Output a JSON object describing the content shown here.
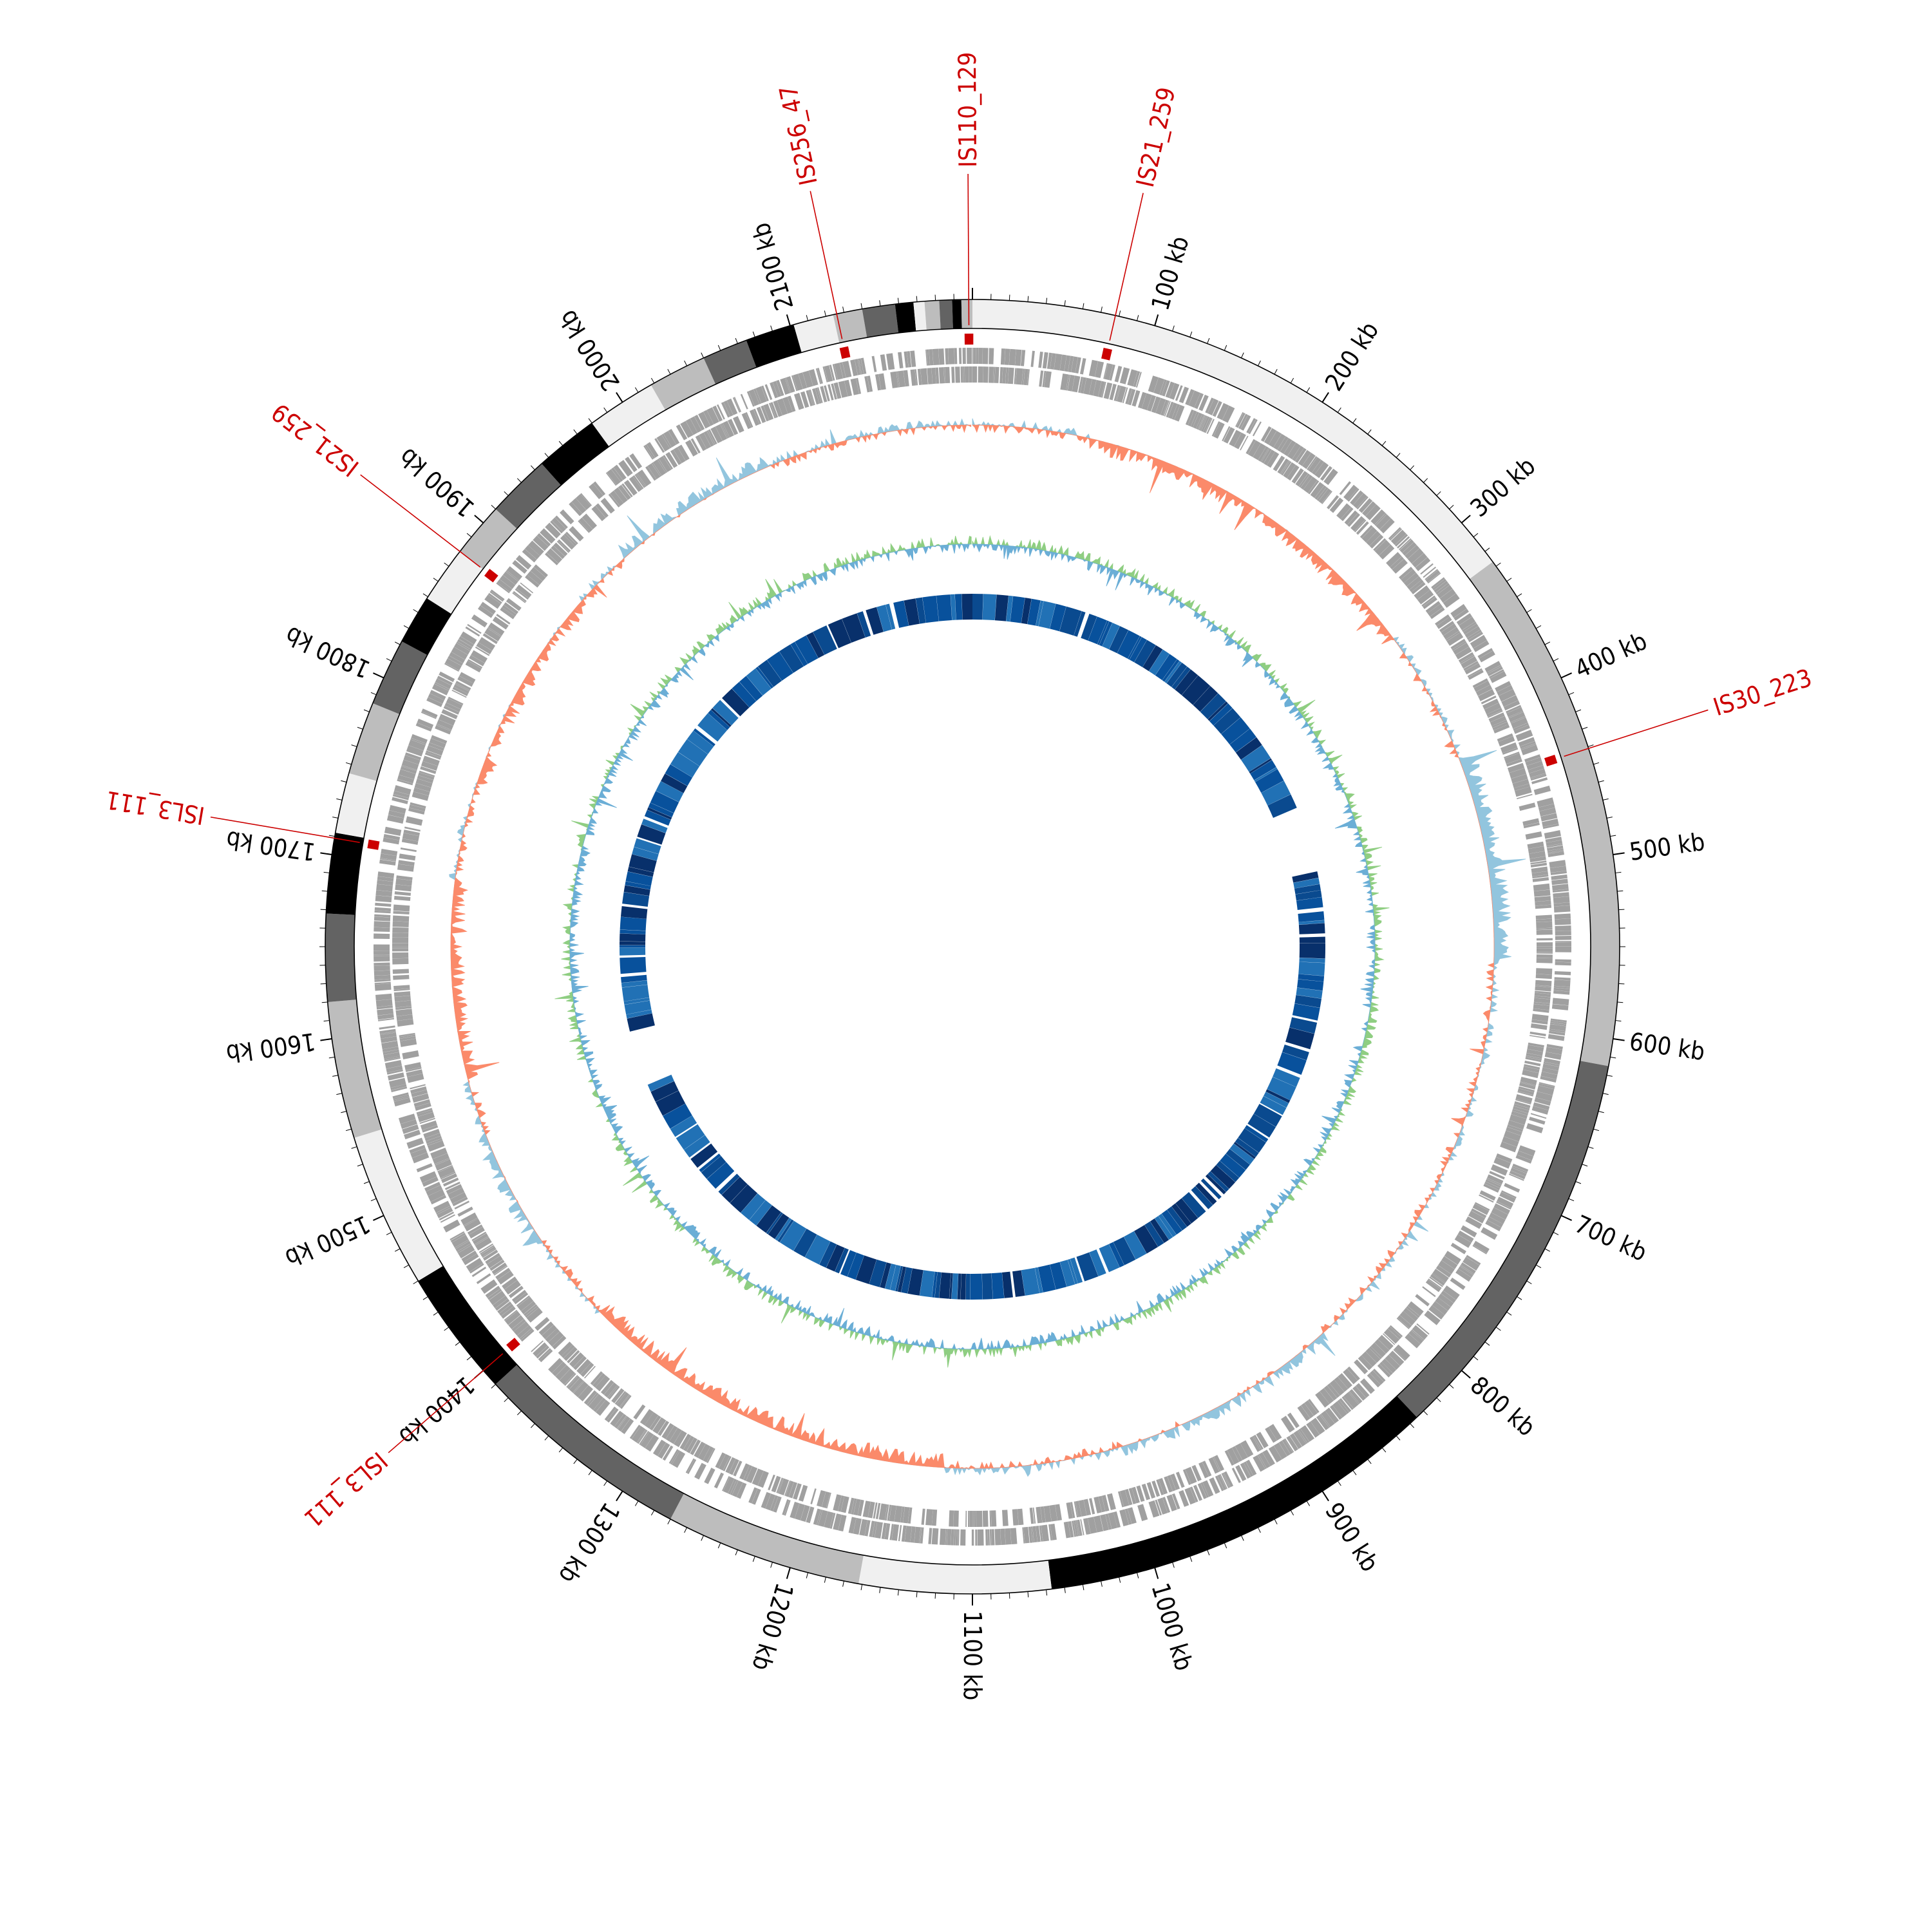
{
  "genome_size_kb": 2200,
  "colors": {
    "ideogram_bands": [
      "#f0f0f0",
      "#bdbdbd",
      "#636363",
      "#000000"
    ],
    "ideogram_outline": "#000000",
    "gene_blocks": "#a0a0a0",
    "gc_skew_positive": "#92c5de",
    "gc_skew_negative": "#fb8a6a",
    "gc_content": "#8fce82",
    "gc_content_alt": "#6baed6",
    "identity_track": [
      "#08306b",
      "#08519c",
      "#2171b5",
      "#0a4a8f"
    ],
    "is_element": "#cc0000"
  },
  "ideogram": {
    "bands": [
      {
        "start": 0,
        "end": 327,
        "shade": 0
      },
      {
        "start": 327,
        "end": 615,
        "shade": 1
      },
      {
        "start": 615,
        "end": 835,
        "shade": 2
      },
      {
        "start": 835,
        "end": 1057,
        "shade": 3
      },
      {
        "start": 1057,
        "end": 1162,
        "shade": 0
      },
      {
        "start": 1162,
        "end": 1270,
        "shade": 1
      },
      {
        "start": 1270,
        "end": 1390,
        "shade": 2
      },
      {
        "start": 1390,
        "end": 1460,
        "shade": 3
      },
      {
        "start": 1460,
        "end": 1545,
        "shade": 0
      },
      {
        "start": 1545,
        "end": 1620,
        "shade": 1
      },
      {
        "start": 1620,
        "end": 1668,
        "shade": 2
      },
      {
        "start": 1668,
        "end": 1712,
        "shade": 3
      },
      {
        "start": 1712,
        "end": 1745,
        "shade": 0
      },
      {
        "start": 1745,
        "end": 1785,
        "shade": 1
      },
      {
        "start": 1785,
        "end": 1822,
        "shade": 2
      },
      {
        "start": 1822,
        "end": 1849,
        "shade": 3
      },
      {
        "start": 1849,
        "end": 1880,
        "shade": 0
      },
      {
        "start": 1880,
        "end": 1910,
        "shade": 1
      },
      {
        "start": 1910,
        "end": 1945,
        "shade": 2
      },
      {
        "start": 1945,
        "end": 1980,
        "shade": 3
      },
      {
        "start": 1980,
        "end": 2018,
        "shade": 0
      },
      {
        "start": 2018,
        "end": 2050,
        "shade": 1
      },
      {
        "start": 2050,
        "end": 2075,
        "shade": 2
      },
      {
        "start": 2075,
        "end": 2102,
        "shade": 3
      },
      {
        "start": 2102,
        "end": 2124,
        "shade": 0
      },
      {
        "start": 2124,
        "end": 2140,
        "shade": 1
      },
      {
        "start": 2140,
        "end": 2158,
        "shade": 2
      },
      {
        "start": 2158,
        "end": 2168,
        "shade": 3
      },
      {
        "start": 2168,
        "end": 2174,
        "shade": 0
      },
      {
        "start": 2174,
        "end": 2182,
        "shade": 1
      },
      {
        "start": 2182,
        "end": 2189,
        "shade": 2
      },
      {
        "start": 2189,
        "end": 2194,
        "shade": 3
      },
      {
        "start": 2194,
        "end": 2200,
        "shade": 1
      }
    ]
  },
  "tick_labels": [
    {
      "kb": 100,
      "label": "100 kb"
    },
    {
      "kb": 200,
      "label": "200 kb"
    },
    {
      "kb": 300,
      "label": "300 kb"
    },
    {
      "kb": 400,
      "label": "400 kb"
    },
    {
      "kb": 500,
      "label": "500 kb"
    },
    {
      "kb": 600,
      "label": "600 kb"
    },
    {
      "kb": 700,
      "label": "700 kb"
    },
    {
      "kb": 800,
      "label": "800 kb"
    },
    {
      "kb": 900,
      "label": "900 kb"
    },
    {
      "kb": 1000,
      "label": "1000 kb"
    },
    {
      "kb": 1100,
      "label": "1100 kb"
    },
    {
      "kb": 1200,
      "label": "1200 kb"
    },
    {
      "kb": 1300,
      "label": "1300 kb"
    },
    {
      "kb": 1400,
      "label": "1400 kb"
    },
    {
      "kb": 1500,
      "label": "1500 kb"
    },
    {
      "kb": 1600,
      "label": "1600 kb"
    },
    {
      "kb": 1700,
      "label": "1700 kb"
    },
    {
      "kb": 1800,
      "label": "1800 kb"
    },
    {
      "kb": 1900,
      "label": "1900 kb"
    },
    {
      "kb": 2000,
      "label": "2000 kb"
    },
    {
      "kb": 2100,
      "label": "2100 kb"
    }
  ],
  "is_elements": [
    {
      "kb": 2126,
      "label": "IS256_47"
    },
    {
      "kb": 2198,
      "label": "IS110_129"
    },
    {
      "kb": 78,
      "label": "IS21_259"
    },
    {
      "kb": 441,
      "label": "IS30_223"
    },
    {
      "kb": 1400,
      "label": "ISL3_111"
    },
    {
      "kb": 1709,
      "label": "ISL3_111"
    },
    {
      "kb": 1880,
      "label": "IS21_259"
    }
  ],
  "identity_gaps": [
    {
      "start": 417,
      "end": 470
    },
    {
      "start": 1525,
      "end": 1555
    }
  ]
}
